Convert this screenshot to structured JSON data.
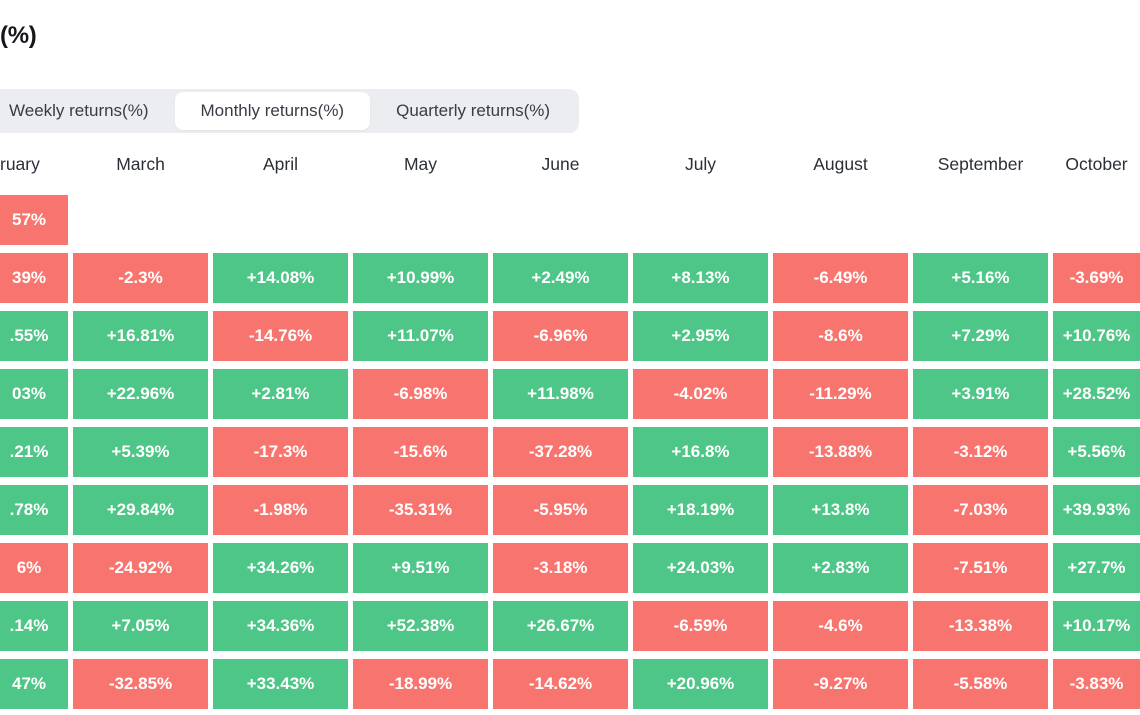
{
  "title": "(%)",
  "tabs": {
    "items": [
      {
        "id": "weekly",
        "label": "Weekly returns(%)",
        "active": false
      },
      {
        "id": "monthly",
        "label": "Monthly returns(%)",
        "active": true
      },
      {
        "id": "quarterly",
        "label": "Quarterly returns(%)",
        "active": false
      }
    ]
  },
  "colors": {
    "positive_cell": "#4ec687",
    "negative_cell": "#f8756f",
    "cell_text": "#ffffff",
    "tabbar_bg": "#ebedf0",
    "active_tab_bg": "#ffffff",
    "header_text": "#2b2f38"
  },
  "table": {
    "column_headers": [
      "ruary",
      "March",
      "April",
      "May",
      "June",
      "July",
      "August",
      "September",
      "October"
    ],
    "rows": [
      [
        {
          "t": "57%",
          "s": "neg"
        },
        null,
        null,
        null,
        null,
        null,
        null,
        null,
        null
      ],
      [
        {
          "t": "39%",
          "s": "neg"
        },
        {
          "t": "-2.3%",
          "s": "neg"
        },
        {
          "t": "+14.08%",
          "s": "pos"
        },
        {
          "t": "+10.99%",
          "s": "pos"
        },
        {
          "t": "+2.49%",
          "s": "pos"
        },
        {
          "t": "+8.13%",
          "s": "pos"
        },
        {
          "t": "-6.49%",
          "s": "neg"
        },
        {
          "t": "+5.16%",
          "s": "pos"
        },
        {
          "t": "-3.69%",
          "s": "neg"
        }
      ],
      [
        {
          "t": ".55%",
          "s": "pos"
        },
        {
          "t": "+16.81%",
          "s": "pos"
        },
        {
          "t": "-14.76%",
          "s": "neg"
        },
        {
          "t": "+11.07%",
          "s": "pos"
        },
        {
          "t": "-6.96%",
          "s": "neg"
        },
        {
          "t": "+2.95%",
          "s": "pos"
        },
        {
          "t": "-8.6%",
          "s": "neg"
        },
        {
          "t": "+7.29%",
          "s": "pos"
        },
        {
          "t": "+10.76%",
          "s": "pos"
        }
      ],
      [
        {
          "t": "03%",
          "s": "pos"
        },
        {
          "t": "+22.96%",
          "s": "pos"
        },
        {
          "t": "+2.81%",
          "s": "pos"
        },
        {
          "t": "-6.98%",
          "s": "neg"
        },
        {
          "t": "+11.98%",
          "s": "pos"
        },
        {
          "t": "-4.02%",
          "s": "neg"
        },
        {
          "t": "-11.29%",
          "s": "neg"
        },
        {
          "t": "+3.91%",
          "s": "pos"
        },
        {
          "t": "+28.52%",
          "s": "pos"
        }
      ],
      [
        {
          "t": ".21%",
          "s": "pos"
        },
        {
          "t": "+5.39%",
          "s": "pos"
        },
        {
          "t": "-17.3%",
          "s": "neg"
        },
        {
          "t": "-15.6%",
          "s": "neg"
        },
        {
          "t": "-37.28%",
          "s": "neg"
        },
        {
          "t": "+16.8%",
          "s": "pos"
        },
        {
          "t": "-13.88%",
          "s": "neg"
        },
        {
          "t": "-3.12%",
          "s": "neg"
        },
        {
          "t": "+5.56%",
          "s": "pos"
        }
      ],
      [
        {
          "t": ".78%",
          "s": "pos"
        },
        {
          "t": "+29.84%",
          "s": "pos"
        },
        {
          "t": "-1.98%",
          "s": "neg"
        },
        {
          "t": "-35.31%",
          "s": "neg"
        },
        {
          "t": "-5.95%",
          "s": "neg"
        },
        {
          "t": "+18.19%",
          "s": "pos"
        },
        {
          "t": "+13.8%",
          "s": "pos"
        },
        {
          "t": "-7.03%",
          "s": "neg"
        },
        {
          "t": "+39.93%",
          "s": "pos"
        }
      ],
      [
        {
          "t": "6%",
          "s": "neg"
        },
        {
          "t": "-24.92%",
          "s": "neg"
        },
        {
          "t": "+34.26%",
          "s": "pos"
        },
        {
          "t": "+9.51%",
          "s": "pos"
        },
        {
          "t": "-3.18%",
          "s": "neg"
        },
        {
          "t": "+24.03%",
          "s": "pos"
        },
        {
          "t": "+2.83%",
          "s": "pos"
        },
        {
          "t": "-7.51%",
          "s": "neg"
        },
        {
          "t": "+27.7%",
          "s": "pos"
        }
      ],
      [
        {
          "t": ".14%",
          "s": "pos"
        },
        {
          "t": "+7.05%",
          "s": "pos"
        },
        {
          "t": "+34.36%",
          "s": "pos"
        },
        {
          "t": "+52.38%",
          "s": "pos"
        },
        {
          "t": "+26.67%",
          "s": "pos"
        },
        {
          "t": "-6.59%",
          "s": "neg"
        },
        {
          "t": "-4.6%",
          "s": "neg"
        },
        {
          "t": "-13.38%",
          "s": "neg"
        },
        {
          "t": "+10.17%",
          "s": "pos"
        }
      ],
      [
        {
          "t": "47%",
          "s": "pos"
        },
        {
          "t": "-32.85%",
          "s": "neg"
        },
        {
          "t": "+33.43%",
          "s": "pos"
        },
        {
          "t": "-18.99%",
          "s": "neg"
        },
        {
          "t": "-14.62%",
          "s": "neg"
        },
        {
          "t": "+20.96%",
          "s": "pos"
        },
        {
          "t": "-9.27%",
          "s": "neg"
        },
        {
          "t": "-5.58%",
          "s": "neg"
        },
        {
          "t": "-3.83%",
          "s": "neg"
        }
      ]
    ]
  },
  "chart_data": {
    "type": "heatmap",
    "title": "(%)",
    "active_view": "Monthly returns(%)",
    "columns": [
      "ruary",
      "March",
      "April",
      "May",
      "June",
      "July",
      "August",
      "September",
      "October"
    ],
    "legend": {
      "positive_color": "#4ec687",
      "negative_color": "#f8756f"
    },
    "note": "left column and right column are cropped by the viewport; cell values shown as rendered",
    "rows": [
      [
        "57%",
        null,
        null,
        null,
        null,
        null,
        null,
        null,
        null
      ],
      [
        "39%",
        -2.3,
        14.08,
        10.99,
        2.49,
        8.13,
        -6.49,
        5.16,
        -3.69
      ],
      [
        ".55%",
        16.81,
        -14.76,
        11.07,
        -6.96,
        2.95,
        -8.6,
        7.29,
        10.76
      ],
      [
        "03%",
        22.96,
        2.81,
        -6.98,
        11.98,
        -4.02,
        -11.29,
        3.91,
        28.52
      ],
      [
        ".21%",
        5.39,
        -17.3,
        -15.6,
        -37.28,
        16.8,
        -13.88,
        -3.12,
        5.56
      ],
      [
        ".78%",
        29.84,
        -1.98,
        -35.31,
        -5.95,
        18.19,
        13.8,
        -7.03,
        39.93
      ],
      [
        "6%",
        -24.92,
        34.26,
        9.51,
        -3.18,
        24.03,
        2.83,
        -7.51,
        27.7
      ],
      [
        ".14%",
        7.05,
        34.36,
        52.38,
        26.67,
        -6.59,
        -4.6,
        -13.38,
        10.17
      ],
      [
        "47%",
        -32.85,
        33.43,
        -18.99,
        -14.62,
        20.96,
        -9.27,
        -5.58,
        -3.83
      ]
    ]
  }
}
